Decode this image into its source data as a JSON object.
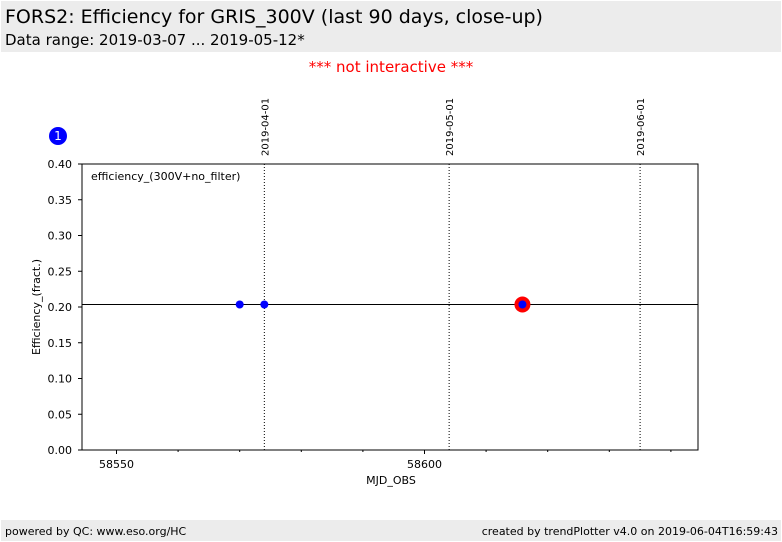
{
  "header": {
    "title": "FORS2: Efficiency for GRIS_300V (last 90 days, close-up)",
    "subtitle": "Data range: 2019-03-07 ... 2019-05-12*"
  },
  "notice": "*** not interactive ***",
  "panel_badge": "1",
  "footer": {
    "left": "powered by QC: www.eso.org/HC",
    "right": "created by trendPlotter v4.0 on 2019-06-04T16:59:43"
  },
  "colors": {
    "points": "#0000ff",
    "highlight": "#ff0000",
    "notice": "#ff0000",
    "band": "#ececec"
  },
  "chart_data": {
    "type": "scatter",
    "xlabel": "MJD_OBS",
    "ylabel": "Efficiency_(fract.)",
    "legend_text": "efficiency_(300V+no_filter)",
    "xlim": [
      58544.4,
      58644.4
    ],
    "ylim": [
      0.0,
      0.4
    ],
    "x_ticks": [
      58550,
      58600
    ],
    "y_ticks": [
      "0.00",
      "0.05",
      "0.10",
      "0.15",
      "0.20",
      "0.25",
      "0.30",
      "0.35",
      "0.40"
    ],
    "reference_line": 0.2035,
    "date_markers": [
      {
        "label": "2019-04-01",
        "mjd": 58574
      },
      {
        "label": "2019-05-01",
        "mjd": 58604
      },
      {
        "label": "2019-06-01",
        "mjd": 58635
      }
    ],
    "points": [
      {
        "x": 58570.0,
        "y": 0.2035
      },
      {
        "x": 58574.0,
        "y": 0.2035
      },
      {
        "x": 58615.9,
        "y": 0.2035
      }
    ],
    "highlighted_point": {
      "x": 58615.9,
      "y": 0.2035
    }
  }
}
